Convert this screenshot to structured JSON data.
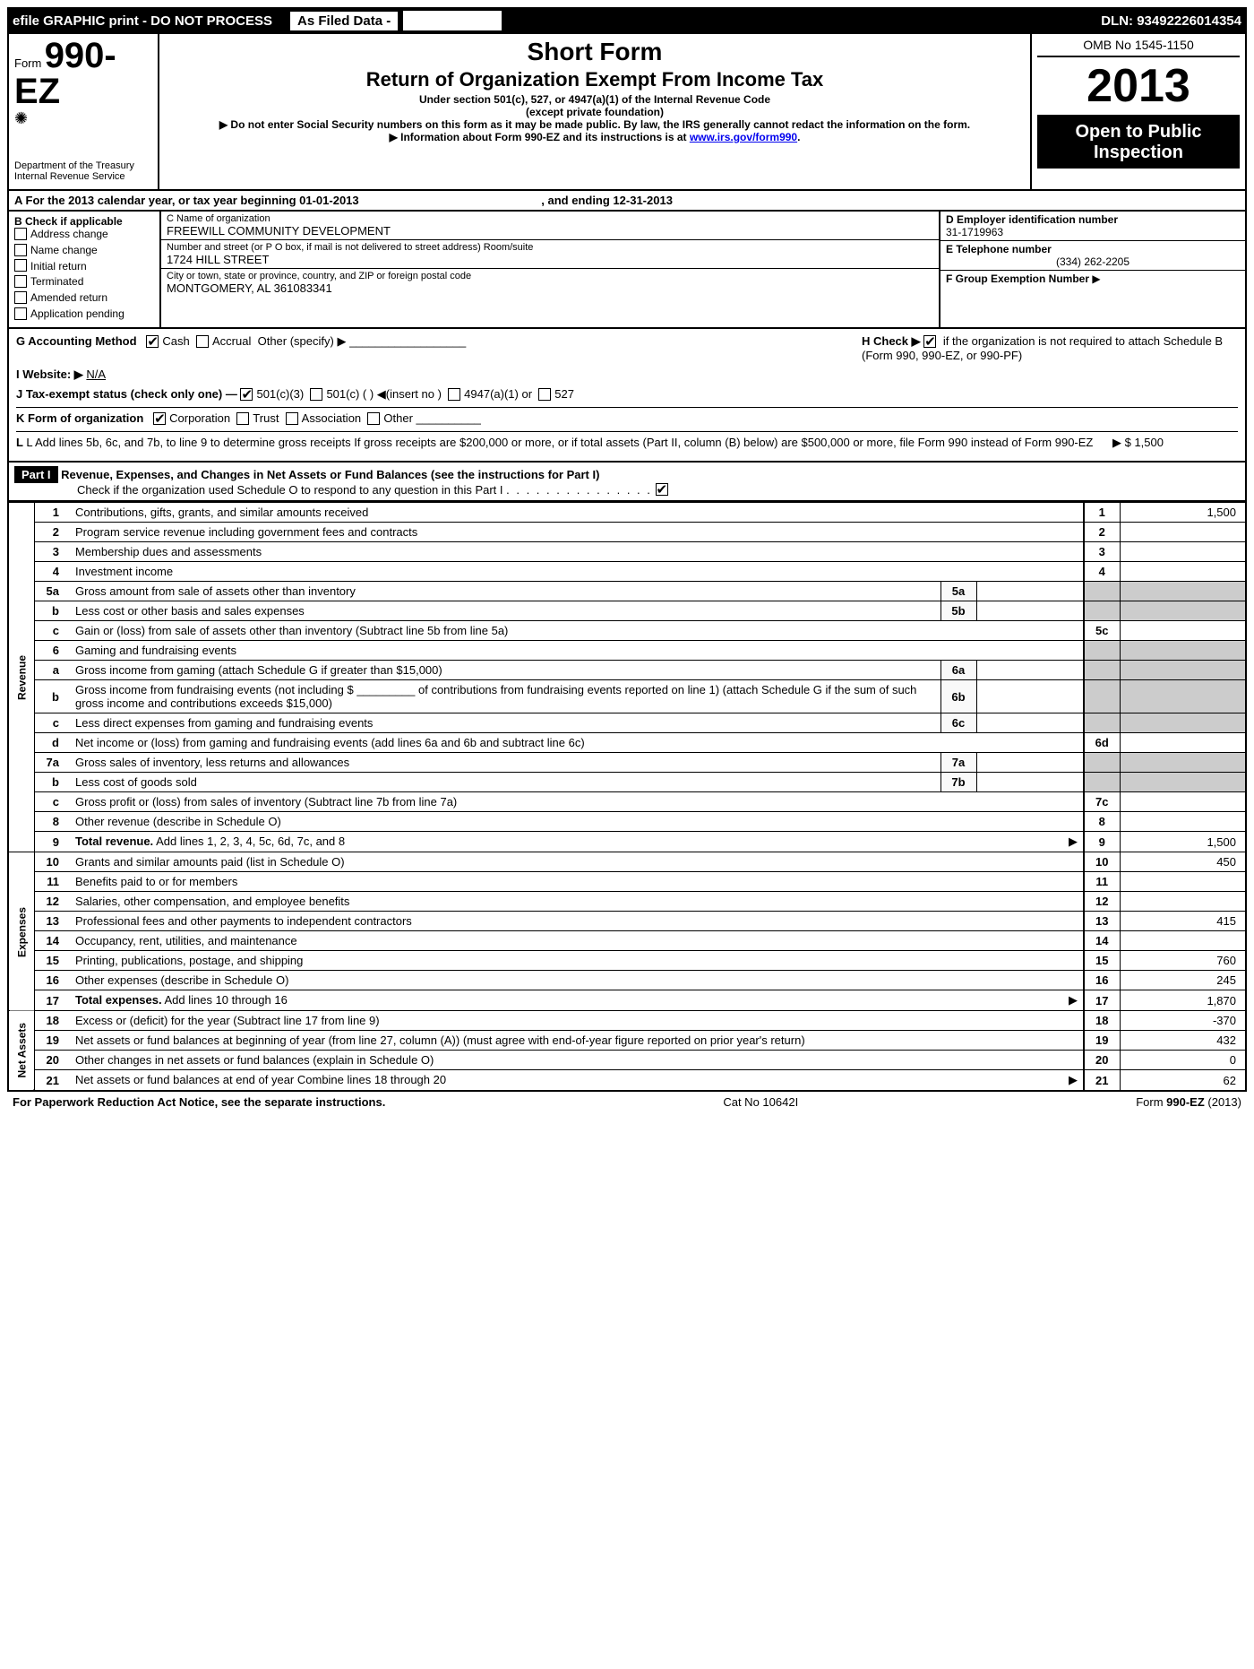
{
  "topbar": {
    "text": "efile GRAPHIC print - DO NOT PROCESS",
    "asFiled": "As Filed Data -",
    "dln": "DLN: 93492226014354"
  },
  "header": {
    "formWord": "Form",
    "formNum": "990-EZ",
    "dept1": "Department of the Treasury",
    "dept2": "Internal Revenue Service",
    "title1": "Short Form",
    "title2": "Return of Organization Exempt From Income Tax",
    "sub1": "Under section 501(c), 527, or 4947(a)(1) of the Internal Revenue Code",
    "sub2": "(except private foundation)",
    "warn1": "▶ Do not enter Social Security numbers on this form as it may be made public. By law, the IRS generally cannot redact the information on the form.",
    "warn2": "▶ Information about Form 990-EZ and its instructions is at ",
    "warn2link": "www.irs.gov/form990",
    "omb": "OMB No 1545-1150",
    "year": "2013",
    "open1": "Open to Public",
    "open2": "Inspection"
  },
  "lineA": {
    "text": "A  For the 2013 calendar year, or tax year beginning 01-01-2013",
    "end": ", and ending 12-31-2013"
  },
  "colB": {
    "title": "B  Check if applicable",
    "items": [
      "Address change",
      "Name change",
      "Initial return",
      "Terminated",
      "Amended return",
      "Application pending"
    ]
  },
  "colC": {
    "nameLbl": "C Name of organization",
    "name": "FREEWILL COMMUNITY DEVELOPMENT",
    "streetLbl": "Number and street (or P O box, if mail is not delivered to street address) Room/suite",
    "street": "1724 HILL STREET",
    "cityLbl": "City or town, state or province, country, and ZIP or foreign postal code",
    "city": "MONTGOMERY, AL  361083341"
  },
  "colD": {
    "einLbl": "D Employer identification number",
    "ein": "31-1719963",
    "telLbl": "E Telephone number",
    "tel": "(334) 262-2205",
    "grpLbl": "F Group Exemption Number",
    "arrow": "▶"
  },
  "gh": {
    "g": "G Accounting Method",
    "gCash": "Cash",
    "gAccrual": "Accrual",
    "gOther": "Other (specify) ▶",
    "h": "H  Check ▶",
    "hText": "if the organization is not required to attach Schedule B (Form 990, 990-EZ, or 990-PF)",
    "i": "I Website: ▶",
    "iVal": "N/A",
    "j": "J Tax-exempt status (check only one) —",
    "j1": "501(c)(3)",
    "j2": "501(c) (   ) ◀(insert no )",
    "j3": "4947(a)(1) or",
    "j4": "527",
    "k": "K Form of organization",
    "k1": "Corporation",
    "k2": "Trust",
    "k3": "Association",
    "k4": "Other",
    "l": "L Add lines 5b, 6c, and 7b, to line 9 to determine gross receipts  If gross receipts are $200,000 or more, or if total assets (Part II, column (B) below) are $500,000 or more, file Form 990 instead of Form 990-EZ",
    "lVal": "▶ $ 1,500"
  },
  "part1": {
    "label": "Part I",
    "title": "Revenue, Expenses, and Changes in Net Assets or Fund Balances (see the instructions for Part I)",
    "sub": "Check if the organization used Schedule O to respond to any question in this Part I"
  },
  "sideLabels": {
    "rev": "Revenue",
    "exp": "Expenses",
    "net": "Net Assets"
  },
  "rows": [
    {
      "n": "1",
      "d": "Contributions, gifts, grants, and similar amounts received",
      "r": "1",
      "v": "1,500"
    },
    {
      "n": "2",
      "d": "Program service revenue including government fees and contracts",
      "r": "2",
      "v": ""
    },
    {
      "n": "3",
      "d": "Membership dues and assessments",
      "r": "3",
      "v": ""
    },
    {
      "n": "4",
      "d": "Investment income",
      "r": "4",
      "v": ""
    },
    {
      "n": "5a",
      "d": "Gross amount from sale of assets other than inventory",
      "m": "5a",
      "shade": true
    },
    {
      "n": "b",
      "d": "Less  cost or other basis and sales expenses",
      "m": "5b",
      "shade": true
    },
    {
      "n": "c",
      "d": "Gain or (loss) from sale of assets other than inventory (Subtract line 5b from line 5a)",
      "r": "5c",
      "v": ""
    },
    {
      "n": "6",
      "d": "Gaming and fundraising events",
      "shade": true
    },
    {
      "n": "a",
      "d": "Gross income from gaming (attach Schedule G if greater than $15,000)",
      "m": "6a",
      "shade": true
    },
    {
      "n": "b",
      "d": "Gross income from fundraising events (not including $ _________ of contributions from fundraising events reported on line 1) (attach Schedule G if the sum of such gross income and contributions exceeds $15,000)",
      "m": "6b",
      "shade": true
    },
    {
      "n": "c",
      "d": "Less  direct expenses from gaming and fundraising events",
      "m": "6c",
      "shade": true
    },
    {
      "n": "d",
      "d": "Net income or (loss) from gaming and fundraising events (add lines 6a and 6b and subtract line 6c)",
      "r": "6d",
      "v": ""
    },
    {
      "n": "7a",
      "d": "Gross sales of inventory, less returns and allowances",
      "m": "7a",
      "shade": true
    },
    {
      "n": "b",
      "d": "Less  cost of goods sold",
      "m": "7b",
      "shade": true
    },
    {
      "n": "c",
      "d": "Gross profit or (loss) from sales of inventory (Subtract line 7b from line 7a)",
      "r": "7c",
      "v": ""
    },
    {
      "n": "8",
      "d": "Other revenue (describe in Schedule O)",
      "r": "8",
      "v": ""
    },
    {
      "n": "9",
      "d": "Total revenue. Add lines 1, 2, 3, 4, 5c, 6d, 7c, and 8",
      "r": "9",
      "v": "1,500",
      "bold": true,
      "arrow": true
    },
    {
      "n": "10",
      "d": "Grants and similar amounts paid (list in Schedule O)",
      "r": "10",
      "v": "450"
    },
    {
      "n": "11",
      "d": "Benefits paid to or for members",
      "r": "11",
      "v": ""
    },
    {
      "n": "12",
      "d": "Salaries, other compensation, and employee benefits",
      "r": "12",
      "v": ""
    },
    {
      "n": "13",
      "d": "Professional fees and other payments to independent contractors",
      "r": "13",
      "v": "415"
    },
    {
      "n": "14",
      "d": "Occupancy, rent, utilities, and maintenance",
      "r": "14",
      "v": ""
    },
    {
      "n": "15",
      "d": "Printing, publications, postage, and shipping",
      "r": "15",
      "v": "760"
    },
    {
      "n": "16",
      "d": "Other expenses (describe in Schedule O)",
      "r": "16",
      "v": "245"
    },
    {
      "n": "17",
      "d": "Total expenses. Add lines 10 through 16",
      "r": "17",
      "v": "1,870",
      "bold": true,
      "arrow": true
    },
    {
      "n": "18",
      "d": "Excess or (deficit) for the year (Subtract line 17 from line 9)",
      "r": "18",
      "v": "-370"
    },
    {
      "n": "19",
      "d": "Net assets or fund balances at beginning of year (from line 27, column (A)) (must agree with end-of-year figure reported on prior year's return)",
      "r": "19",
      "v": "432"
    },
    {
      "n": "20",
      "d": "Other changes in net assets or fund balances (explain in Schedule O)",
      "r": "20",
      "v": "0"
    },
    {
      "n": "21",
      "d": "Net assets or fund balances at end of year  Combine lines 18 through 20",
      "r": "21",
      "v": "62",
      "arrow": true
    }
  ],
  "footer": {
    "left": "For Paperwork Reduction Act Notice, see the separate instructions.",
    "mid": "Cat No  10642I",
    "right": "Form 990-EZ (2013)"
  }
}
